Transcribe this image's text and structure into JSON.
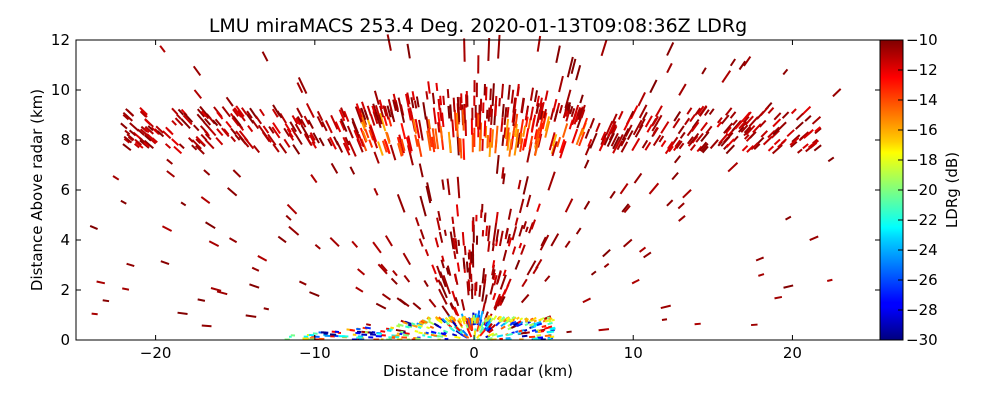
{
  "chart_data": {
    "type": "heatmap",
    "title": "LMU miraMACS 253.4 Deg. 2020-01-13T09:08:36Z  LDRg",
    "xlabel": "Distance from radar (km)",
    "ylabel": "Distance Above radar  (km)",
    "xlim": [
      -25,
      25.5
    ],
    "ylim": [
      0,
      12
    ],
    "x_ticks": [
      -20,
      -10,
      0,
      10,
      20
    ],
    "x_tick_labels": [
      "−20",
      "−10",
      "0",
      "10",
      "20"
    ],
    "y_ticks": [
      0,
      2,
      4,
      6,
      8,
      10,
      12
    ],
    "y_tick_labels": [
      "0",
      "2",
      "4",
      "6",
      "8",
      "10",
      "12"
    ],
    "colorbar": {
      "label": "LDRg (dB)",
      "range": [
        -30,
        -10
      ],
      "ticks": [
        -10,
        -12,
        -14,
        -16,
        -18,
        -20,
        -22,
        -24,
        -26,
        -28,
        -30
      ],
      "tick_labels": [
        "−10",
        "−12",
        "−14",
        "−16",
        "−18",
        "−20",
        "−22",
        "−24",
        "−26",
        "−28",
        "−30"
      ],
      "colormap": "jet"
    },
    "description_layers": [
      {
        "name": "ice-cloud-layer",
        "height_km": [
          7.6,
          9.2
        ],
        "x_range_km": [
          -22,
          22
        ],
        "ldr_db": [
          -16,
          -10
        ]
      },
      {
        "name": "sparse-echoes",
        "height_km": [
          0,
          12
        ],
        "x_range_km": [
          -24,
          23
        ],
        "ldr_db": [
          -11,
          -10
        ]
      },
      {
        "name": "near-surface-clutter",
        "height_km": [
          0,
          1.0
        ],
        "x_range_km": [
          -12,
          5
        ],
        "ldr_db": [
          -30,
          -12
        ]
      }
    ],
    "grid": false
  }
}
